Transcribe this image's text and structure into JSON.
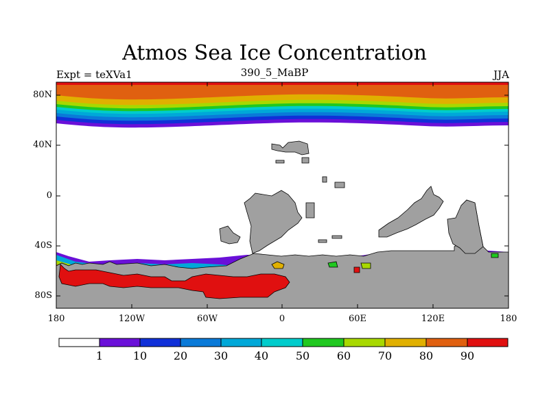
{
  "title": "Atmos Sea Ice Concentration",
  "subtitle_left": "Expt = teXVa1",
  "subtitle_center": "390_5_MaBP",
  "subtitle_right": "JJA",
  "axes": {
    "lat_labels": [
      "80N",
      "40N",
      "0",
      "40S",
      "80S"
    ],
    "lon_labels": [
      "180",
      "120W",
      "60W",
      "0",
      "60E",
      "120E",
      "180"
    ]
  },
  "colors": {
    "land": "#a0a0a0",
    "ocean": "#ffffff",
    "bins": [
      "#ffffff",
      "#6a10d8",
      "#1030d8",
      "#0a7ad8",
      "#00a8d8",
      "#00cccc",
      "#20c820",
      "#a8d800",
      "#e0b000",
      "#e06010",
      "#e01010"
    ]
  },
  "colorbar": {
    "labels": [
      "1",
      "10",
      "20",
      "30",
      "40",
      "50",
      "60",
      "70",
      "80",
      "90"
    ]
  },
  "chart_data": {
    "type": "heatmap",
    "title": "Atmos Sea Ice Concentration",
    "variable": "sea ice concentration",
    "season": "JJA",
    "experiment": "teXVa1",
    "period": "390_5_MaBP",
    "xlim": [
      -180,
      180
    ],
    "ylim": [
      -90,
      90
    ],
    "levels": [
      1,
      10,
      20,
      30,
      40,
      50,
      60,
      70,
      80,
      90
    ],
    "north_ice_edge_lat": 58,
    "south_ice_edge_lat": -48
  }
}
